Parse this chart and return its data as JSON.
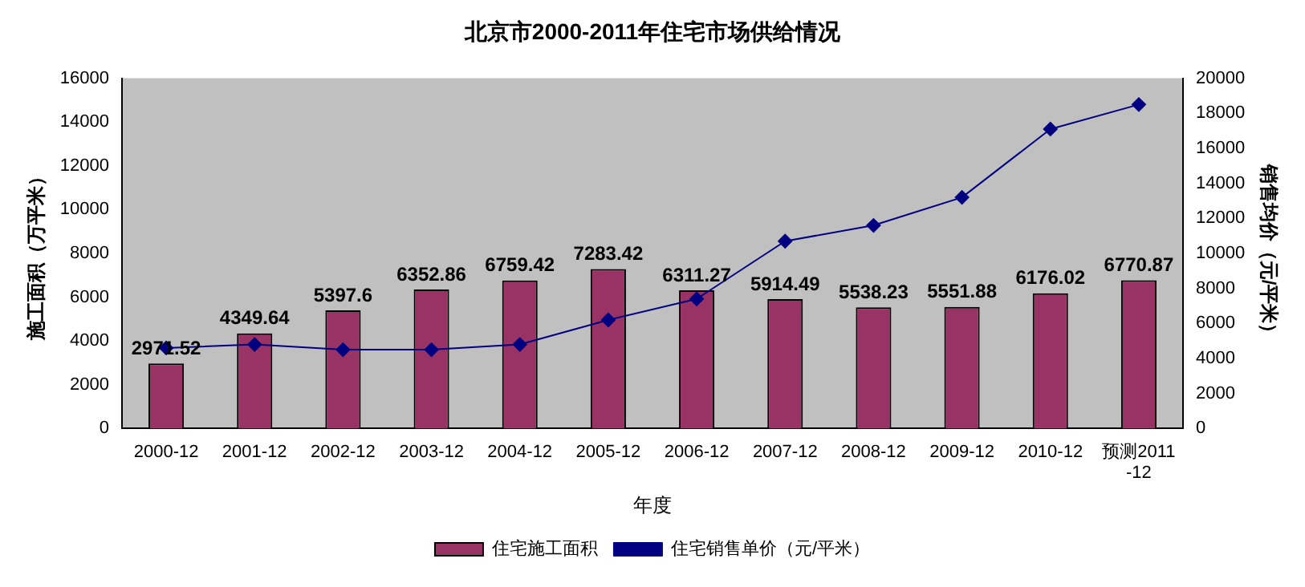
{
  "chart_data": {
    "type": "bar",
    "title": "北京市2000-2011年住宅市场供给情况",
    "xlabel": "年度",
    "ylabel": "施工面积（万平米）",
    "y2label": "销售均价（元/平米）",
    "categories": [
      "2000-12",
      "2001-12",
      "2002-12",
      "2003-12",
      "2004-12",
      "2005-12",
      "2006-12",
      "2007-12",
      "2008-12",
      "2009-12",
      "2010-12",
      "预测2011-12"
    ],
    "series": [
      {
        "name": "住宅施工面积",
        "color": "#993366",
        "values": [
          2971.52,
          4349.64,
          5397.6,
          6352.86,
          6759.42,
          7283.42,
          6311.27,
          5914.49,
          5538.23,
          5551.88,
          6176.02,
          6770.87
        ],
        "value_labels": [
          "2971.52",
          "4349.64",
          "5397.6",
          "6352.86",
          "6759.42",
          "7283.42",
          "6311.27",
          "5914.49",
          "5538.23",
          "5551.88",
          "6176.02",
          "6770.87"
        ]
      },
      {
        "name": "住宅销售单价（元/平米）",
        "type": "line",
        "axis": "y2",
        "color": "#000080",
        "marker": "diamond",
        "values": [
          4600,
          4800,
          4500,
          4500,
          4800,
          6200,
          7400,
          10700,
          11600,
          13200,
          17100,
          18500
        ]
      }
    ],
    "ylim": [
      0,
      16000
    ],
    "yticks": [
      0,
      2000,
      4000,
      6000,
      8000,
      10000,
      12000,
      14000,
      16000
    ],
    "y2lim": [
      0,
      20000
    ],
    "y2ticks": [
      0,
      2000,
      4000,
      6000,
      8000,
      10000,
      12000,
      14000,
      16000,
      18000,
      20000
    ],
    "grid": false,
    "legend": "bottom"
  }
}
